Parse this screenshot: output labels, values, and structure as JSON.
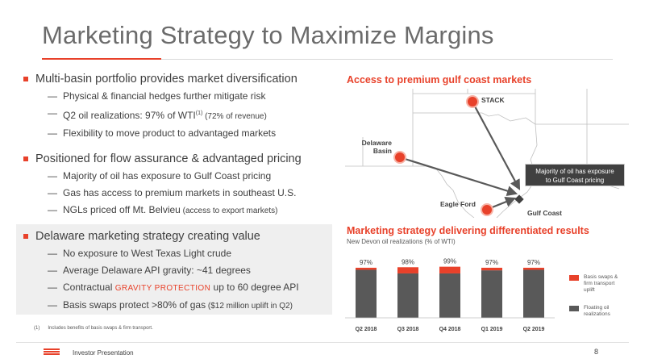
{
  "title": "Marketing Strategy to Maximize Margins",
  "colors": {
    "accent": "#e8412a",
    "dark": "#404040",
    "box_bg": "#efefef"
  },
  "left": {
    "section1": {
      "heading": "Multi-basin portfolio provides market diversification",
      "items": [
        {
          "text": "Physical & financial hedges further mitigate risk"
        },
        {
          "text": "Q2 oil realizations: 97% of WTI",
          "sup": "(1)",
          "small": " (72% of revenue)"
        },
        {
          "text": "Flexibility to move product to advantaged markets"
        }
      ]
    },
    "section2": {
      "heading": "Positioned for flow assurance & advantaged pricing",
      "items": [
        {
          "text": "Majority of oil has exposure to Gulf Coast pricing"
        },
        {
          "text": "Gas has access to premium markets in southeast U.S."
        },
        {
          "text": "NGLs priced off Mt. Belvieu",
          "small": " (access to export markets)"
        }
      ]
    },
    "section3": {
      "heading": "Delaware marketing strategy creating value",
      "items": [
        {
          "text": "No exposure to West Texas Light crude"
        },
        {
          "text": "Average Delaware API gravity: ~41 degrees"
        },
        {
          "text_before": "Contractual ",
          "caps": "GRAVITY PROTECTION",
          "text_after": " up to 60 degree API"
        },
        {
          "text": "Basis swaps protect >80% of gas",
          "small": " ($12 million uplift in Q2)"
        }
      ]
    }
  },
  "footnote": {
    "num": "(1)",
    "text": "Includes benefits of basis swaps & firm transport."
  },
  "map_section": {
    "heading": "Access to premium gulf coast markets",
    "labels": {
      "stack": "STACK",
      "delaware_line1": "Delaware",
      "delaware_line2": "Basin",
      "eagle_ford": "Eagle Ford",
      "gulf_coast": "Gulf Coast"
    },
    "callout_line1": "Majority of oil has exposure",
    "callout_line2": "to Gulf Coast pricing"
  },
  "chart_section": {
    "heading": "Marketing strategy delivering differentiated results",
    "subheading": "New Devon oil realizations (% of WTI)"
  },
  "chart_data": {
    "type": "bar",
    "stacked": true,
    "categories": [
      "Q2 2018",
      "Q3 2018",
      "Q4 2018",
      "Q1 2019",
      "Q2 2019"
    ],
    "totals": [
      "97%",
      "98%",
      "99%",
      "97%",
      "97%"
    ],
    "series": [
      {
        "name": "Floating oil realizations",
        "color": "#595959",
        "values": [
          93,
          86,
          86,
          92,
          93
        ]
      },
      {
        "name": "Basis swaps & firm transport uplift",
        "color": "#e8412a",
        "values": [
          4,
          12,
          13,
          5,
          4
        ]
      }
    ],
    "ylim": [
      0,
      100
    ],
    "legend": [
      {
        "line1": "Basis swaps &",
        "line2": "firm transport",
        "line3": "uplift",
        "color": "#e8412a"
      },
      {
        "line1": "Floating oil",
        "line2": "realizations",
        "line3": "",
        "color": "#595959"
      }
    ]
  },
  "footer": {
    "text": "Investor Presentation",
    "page": "8"
  }
}
